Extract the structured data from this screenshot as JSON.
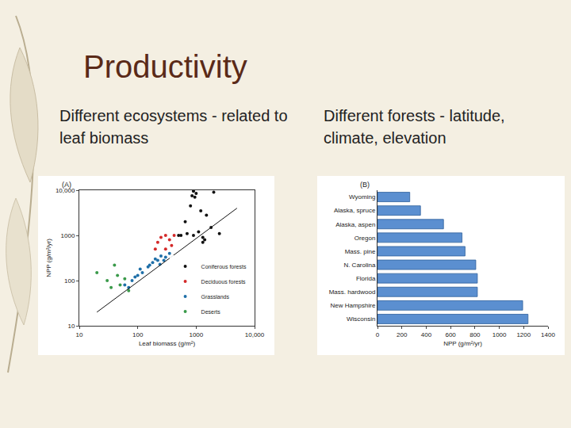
{
  "slide": {
    "title": "Productivity",
    "left_text": "Different ecosystems - related to leaf biomass",
    "right_text": "Different forests - latitude, climate, elevation"
  },
  "chart_data": [
    {
      "type": "scatter",
      "annotations": [
        "(A)"
      ],
      "x_label": "Leaf biomass (g/m²)",
      "y_label": "NPP (g/m²/yr)",
      "log": true,
      "grid": false,
      "xlim": [
        10,
        10000
      ],
      "ylim": [
        10,
        10000
      ],
      "xticks": [
        10,
        100,
        1000,
        {
          "value": 10000,
          "label": "10,000"
        }
      ],
      "yticks": [
        10,
        100,
        1000,
        {
          "value": 10000,
          "label": "10,000"
        }
      ],
      "legend": "lower right",
      "series": [
        {
          "name": "Coniferous forests",
          "color": "#111111",
          "marker": "circle",
          "x": [
            900,
            1000,
            850,
            950,
            2000,
            800,
            1200,
            1500,
            650,
            900,
            1100,
            1300,
            1400,
            1800,
            550,
            700,
            500,
            1300,
            2500
          ],
          "values": [
            9500,
            8500,
            7500,
            7000,
            9000,
            4500,
            3500,
            2800,
            2000,
            1000,
            1200,
            900,
            800,
            1500,
            1000,
            1100,
            1000,
            700,
            1100
          ]
        },
        {
          "name": "Deciduous forests",
          "color": "#d42a2a",
          "marker": "circle",
          "x": [
            220,
            250,
            300,
            380,
            420,
            300,
            200,
            350
          ],
          "values": [
            700,
            900,
            1000,
            600,
            1000,
            500,
            500,
            800
          ]
        },
        {
          "name": "Grasslands",
          "color": "#1f6fa8",
          "marker": "circle",
          "x": [
            60,
            80,
            100,
            120,
            150,
            180,
            200,
            220,
            250,
            300,
            280,
            350,
            90,
            110,
            70,
            160,
            240
          ],
          "values": [
            80,
            100,
            130,
            150,
            200,
            250,
            300,
            280,
            350,
            330,
            280,
            400,
            120,
            180,
            70,
            220,
            230
          ]
        },
        {
          "name": "Deserts",
          "color": "#3a9a4a",
          "marker": "circle",
          "x": [
            20,
            30,
            40,
            50,
            60,
            35,
            70,
            45
          ],
          "values": [
            150,
            100,
            220,
            80,
            110,
            70,
            60,
            130
          ]
        },
        {
          "type": "line",
          "color": "#111111",
          "line_style": "solid",
          "x": [
            20,
            5000
          ],
          "values": [
            20,
            4000
          ]
        }
      ]
    },
    {
      "type": "bar",
      "annotations": [
        "(B)"
      ],
      "orientation": "horizontal",
      "x_label": "NPP (g/m²/yr)",
      "grid": false,
      "color": "#5b8fd0",
      "categories": [
        "Wyoming",
        "Alaska, spruce",
        "Alaska, aspen",
        "Oregon",
        "Mass. pine",
        "N. Carolina",
        "Florida",
        "Mass. hardwood",
        "New Hampshire",
        "Wisconsin"
      ],
      "values": [
        265,
        353,
        542,
        694,
        719,
        807,
        820,
        820,
        1192,
        1236
      ],
      "xlim": [
        0,
        1400
      ],
      "xticks": [
        0,
        200,
        400,
        600,
        800,
        1000,
        1200,
        1400
      ]
    }
  ]
}
